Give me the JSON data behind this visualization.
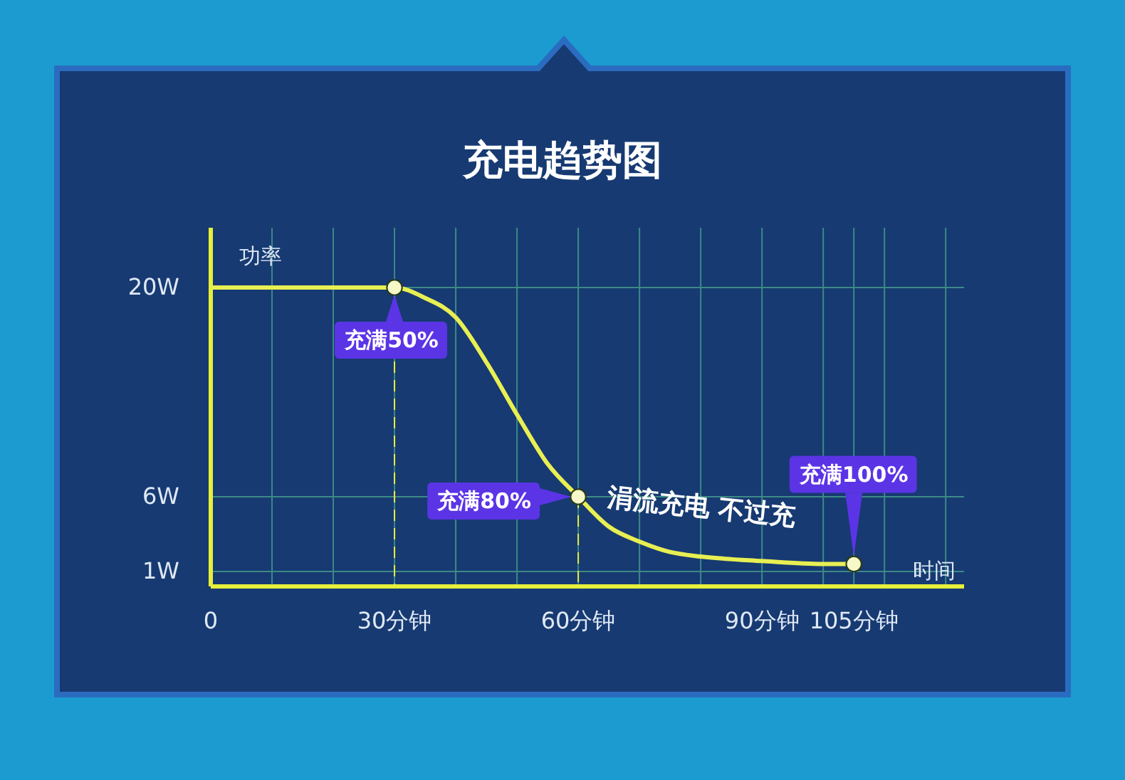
{
  "chart_data": {
    "type": "line",
    "title": "充电趋势图",
    "xlabel": "时间",
    "ylabel": "功率",
    "xlim": [
      0,
      123
    ],
    "xticks": [
      0,
      {
        "value": 10,
        "label": null
      },
      {
        "value": 20,
        "label": null
      },
      {
        "value": 30,
        "label": "30分钟"
      },
      {
        "value": 40,
        "label": null
      },
      {
        "value": 50,
        "label": null
      },
      {
        "value": 60,
        "label": "60分钟"
      },
      {
        "value": 70,
        "label": null
      },
      {
        "value": 80,
        "label": null
      },
      {
        "value": 90,
        "label": "90分钟"
      },
      {
        "value": 100,
        "label": null
      },
      {
        "value": 105,
        "label": "105分钟"
      },
      {
        "value": 110,
        "label": null
      },
      {
        "value": 120,
        "label": null
      }
    ],
    "ylim": [
      0,
      24
    ],
    "yticks": [
      {
        "value": 1,
        "label": "1W"
      },
      {
        "value": 6,
        "label": "6W"
      },
      {
        "value": 20,
        "label": "20W"
      }
    ],
    "grid": true,
    "ref_lines": [
      {
        "axis": "x",
        "value": 30,
        "color": "#e6ef3a",
        "line_style": "dashed"
      },
      {
        "axis": "x",
        "value": 60,
        "color": "#e6ef3a",
        "line_style": "dashed"
      }
    ],
    "series": [
      {
        "color": "#e8ef52",
        "marker": "none",
        "x": [
          0,
          30,
          35,
          40,
          45,
          50,
          55,
          60,
          65,
          70,
          75,
          80,
          90,
          100,
          105
        ],
        "values": [
          20,
          20,
          19.3,
          18,
          15,
          11.5,
          8.2,
          6,
          4,
          3,
          2.3,
          2,
          1.7,
          1.5,
          1.5
        ]
      },
      {
        "type": "scatter",
        "color": "#f6f8c8",
        "marker": "circle",
        "x": [
          30,
          60,
          105
        ],
        "values": [
          20,
          6,
          1.5
        ]
      }
    ],
    "annotations": [
      {
        "text": "充满50%",
        "x": 30,
        "y": 20
      },
      {
        "text": "充满80%",
        "x": 60,
        "y": 6
      },
      {
        "text": "充满100%",
        "x": 105,
        "y": 1.5
      },
      "涓流充电 不过充"
    ]
  }
}
